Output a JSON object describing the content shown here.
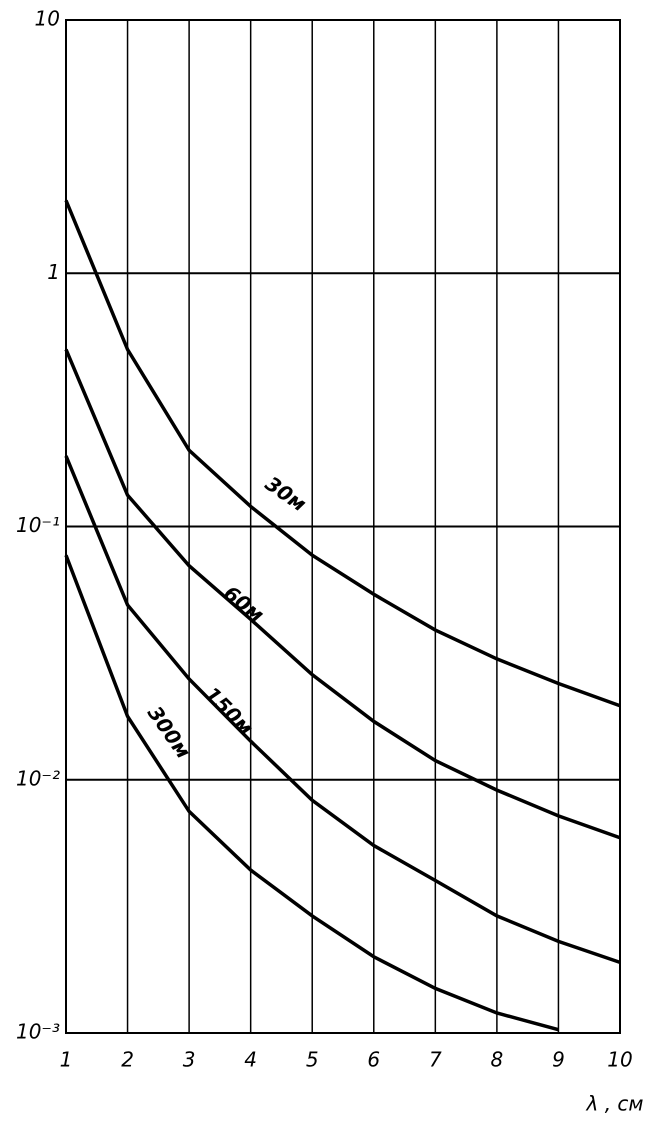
{
  "chart_data": {
    "type": "line",
    "x_label": "λ , см",
    "x": [
      1,
      2,
      3,
      4,
      5,
      6,
      7,
      8,
      9,
      10
    ],
    "xlim": [
      1,
      10
    ],
    "xticks": [
      1,
      2,
      3,
      4,
      5,
      6,
      7,
      8,
      9,
      10
    ],
    "ylim": [
      0.001,
      10
    ],
    "log_y": true,
    "grid": true,
    "yticks": [
      {
        "value": 0.001,
        "label": "10⁻³"
      },
      {
        "value": 0.01,
        "label": "10⁻²"
      },
      {
        "value": 0.1,
        "label": "10⁻¹"
      },
      1,
      10
    ],
    "series": [
      {
        "name": "30м",
        "color": "#000000",
        "values": [
          1.94,
          0.5,
          0.2,
          0.12,
          0.077,
          0.054,
          0.039,
          0.03,
          0.024,
          0.0196
        ]
      },
      {
        "name": "60м",
        "color": "#000000",
        "values": [
          0.5,
          0.133,
          0.07,
          0.043,
          0.026,
          0.017,
          0.0119,
          0.0091,
          0.0072,
          0.0059
        ]
      },
      {
        "name": "150м",
        "color": "#000000",
        "values": [
          0.19,
          0.049,
          0.025,
          0.0142,
          0.0083,
          0.0055,
          0.004,
          0.0029,
          0.0023,
          0.0019
        ]
      },
      {
        "name": "300м",
        "color": "#000000",
        "values": [
          0.077,
          0.0178,
          0.0075,
          0.0044,
          0.0029,
          0.002,
          0.0015,
          0.0012,
          0.00103,
          null
        ]
      }
    ]
  }
}
